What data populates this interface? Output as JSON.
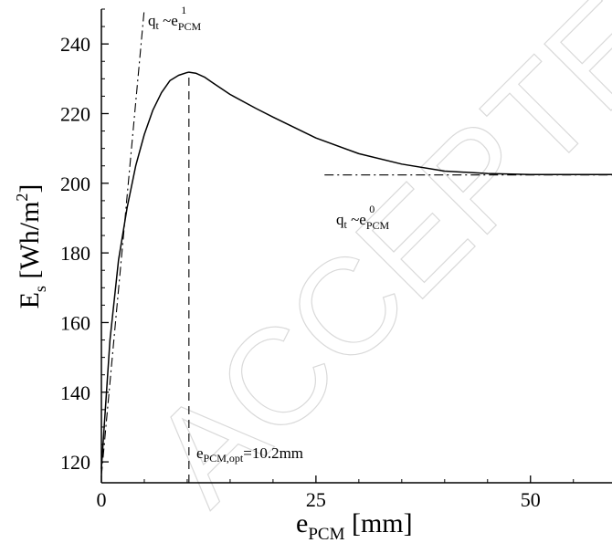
{
  "chart_data": {
    "type": "line",
    "title": "",
    "xlabel": {
      "main": "e",
      "sub": "PCM",
      "unit": " [mm]"
    },
    "ylabel": {
      "main": "E",
      "sub": "s",
      "unit": " [Wh/m",
      "sup": "2",
      "close": "]"
    },
    "xlim": [
      0,
      59.5
    ],
    "ylim": [
      114,
      250
    ],
    "x_ticks": [
      0,
      25,
      50
    ],
    "x_tick_labels": [
      "0",
      "25",
      "50"
    ],
    "y_ticks": [
      120,
      140,
      160,
      180,
      200,
      220,
      240
    ],
    "y_tick_labels": [
      "120",
      "140",
      "160",
      "180",
      "200",
      "220",
      "240"
    ],
    "grid": false,
    "series": [
      {
        "style": "solid",
        "x": [
          0,
          1,
          2,
          3,
          4,
          5,
          6,
          7,
          8,
          9,
          10,
          10.2,
          11,
          12,
          13,
          15,
          18,
          20,
          25,
          30,
          35,
          40,
          45,
          50,
          55,
          59.5
        ],
        "y": [
          118,
          155,
          178,
          193,
          205,
          214,
          221,
          226,
          229.5,
          231,
          231.8,
          231.9,
          231.6,
          230.5,
          228.8,
          225.5,
          221.5,
          219,
          213,
          208.5,
          205.5,
          203.5,
          202.8,
          202.5,
          202.5,
          202.5
        ]
      },
      {
        "style": "dash-dot",
        "x": [
          0,
          5
        ],
        "y": [
          116,
          250
        ]
      },
      {
        "style": "dash-dot",
        "x": [
          26,
          59.5
        ],
        "y": [
          202.4,
          202.4
        ]
      },
      {
        "style": "dashed",
        "x": [
          10.2,
          10.2
        ],
        "y": [
          114,
          231.9
        ]
      }
    ],
    "annotations": {
      "linear": {
        "q": "q",
        "qsub": "t",
        "tilde": " ~e",
        "esub": "PCM",
        "esup": "1"
      },
      "flat": {
        "q": "q",
        "qsub": "t",
        "tilde": " ~e",
        "esub": "PCM",
        "esup": "0"
      },
      "optimum": {
        "e": "e",
        "esub": "PCM,opt",
        "value": "=10.2mm"
      }
    }
  },
  "watermark_text": "ACCEPTED MANUSCRIPT"
}
